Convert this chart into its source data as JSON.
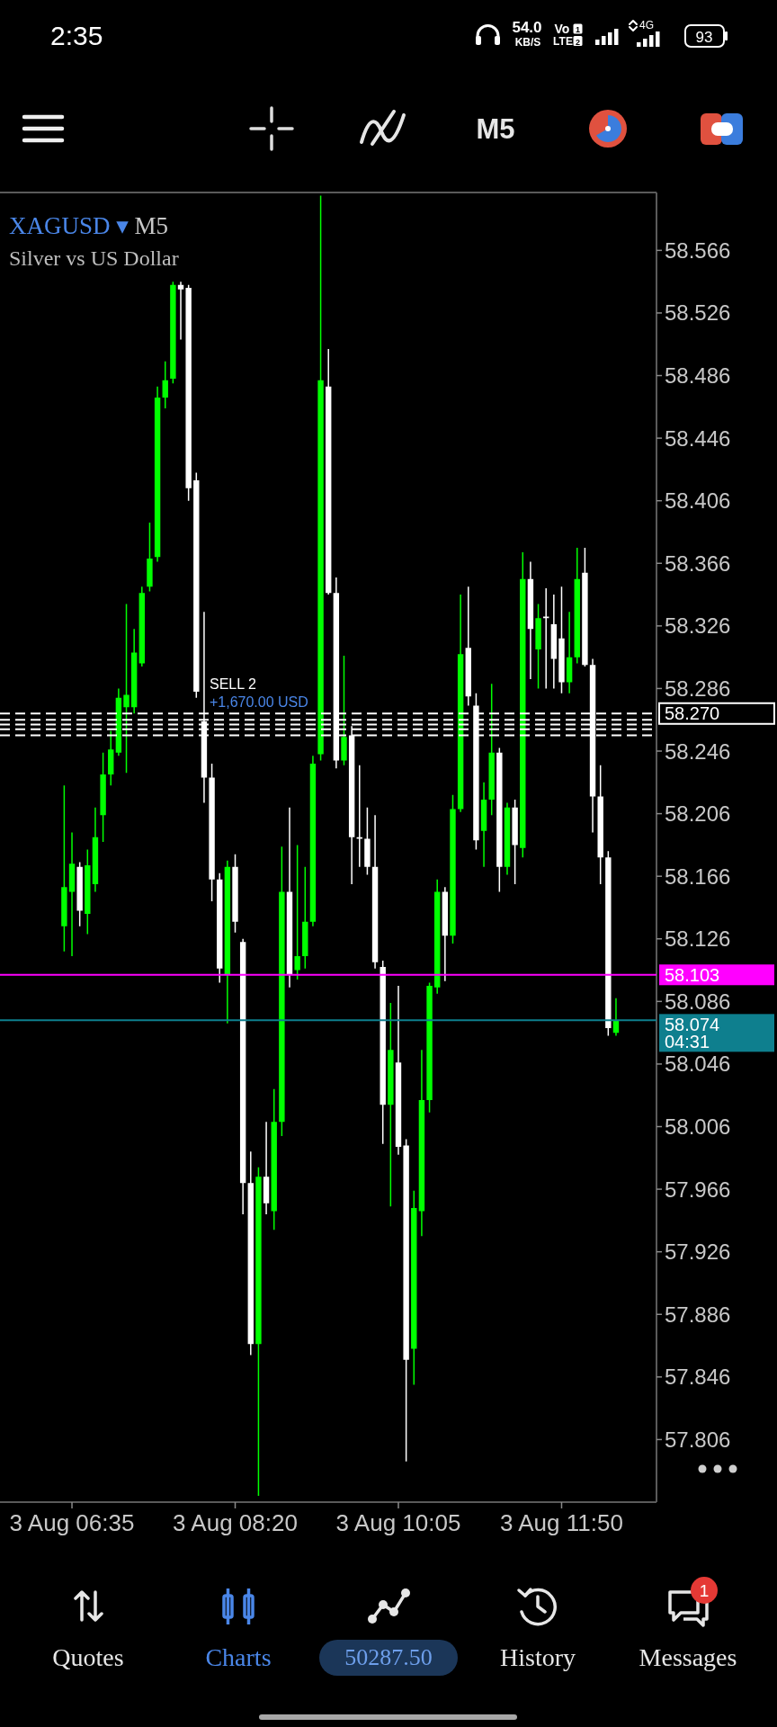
{
  "chart_data": {
    "type": "candlestick",
    "title": "XAGUSD ▾ M5",
    "subtitle": "Silver vs US Dollar",
    "categories": [
      null,
      "3 Aug 06:35",
      null,
      null,
      null,
      null,
      null,
      null,
      null,
      null,
      null,
      null,
      null,
      null,
      null,
      null,
      null,
      null,
      null,
      null,
      null,
      null,
      "3 Aug 08:20",
      null,
      null,
      null,
      null,
      null,
      null,
      null,
      null,
      null,
      null,
      null,
      null,
      null,
      null,
      null,
      null,
      null,
      null,
      null,
      null,
      "3 Aug 10:05",
      null,
      null,
      null,
      null,
      null,
      null,
      null,
      null,
      null,
      null,
      null,
      null,
      null,
      null,
      null,
      null,
      null,
      null,
      null,
      null,
      "3 Aug 11:50",
      null,
      null,
      null,
      null,
      null,
      null,
      null
    ],
    "ohlc": [
      [
        58.134,
        58.224,
        58.118,
        58.159
      ],
      [
        58.156,
        58.194,
        58.115,
        58.174
      ],
      [
        58.172,
        58.175,
        58.134,
        58.144
      ],
      [
        58.142,
        58.183,
        58.129,
        58.173
      ],
      [
        58.161,
        58.21,
        58.156,
        58.191
      ],
      [
        58.205,
        58.245,
        58.188,
        58.231
      ],
      [
        58.231,
        58.259,
        58.224,
        58.247
      ],
      [
        58.245,
        58.286,
        58.243,
        58.28
      ],
      [
        58.274,
        58.34,
        58.232,
        58.282
      ],
      [
        58.274,
        58.324,
        58.27,
        58.309
      ],
      [
        58.302,
        58.351,
        58.3,
        58.347
      ],
      [
        58.351,
        58.392,
        58.348,
        58.369
      ],
      [
        58.37,
        58.479,
        58.367,
        58.472
      ],
      [
        58.472,
        58.495,
        58.465,
        58.483
      ],
      [
        58.484,
        58.546,
        58.481,
        58.544
      ],
      [
        58.544,
        58.546,
        58.509,
        58.541
      ],
      [
        58.542,
        58.544,
        58.406,
        58.414
      ],
      [
        58.419,
        58.424,
        58.28,
        58.284
      ],
      [
        58.265,
        58.335,
        58.213,
        58.229
      ],
      [
        58.229,
        58.238,
        58.15,
        58.164
      ],
      [
        58.164,
        58.168,
        58.098,
        58.107
      ],
      [
        58.103,
        58.176,
        58.072,
        58.172
      ],
      [
        58.172,
        58.18,
        58.13,
        58.137
      ],
      [
        58.124,
        58.126,
        57.95,
        57.97
      ],
      [
        57.97,
        57.99,
        57.86,
        57.867
      ],
      [
        57.867,
        57.98,
        57.77,
        57.974
      ],
      [
        57.974,
        58.009,
        57.95,
        57.957
      ],
      [
        57.952,
        58.03,
        57.94,
        58.009
      ],
      [
        58.009,
        58.185,
        58.0,
        58.156
      ],
      [
        58.156,
        58.21,
        58.095,
        58.103
      ],
      [
        58.106,
        58.186,
        58.1,
        58.115
      ],
      [
        58.115,
        58.172,
        58.107,
        58.137
      ],
      [
        58.137,
        58.243,
        58.134,
        58.238
      ],
      [
        58.244,
        58.601,
        58.24,
        58.483
      ],
      [
        58.479,
        58.503,
        58.346,
        58.347
      ],
      [
        58.347,
        58.357,
        58.235,
        58.24
      ],
      [
        58.24,
        58.307,
        58.237,
        58.255
      ],
      [
        58.256,
        58.262,
        58.161,
        58.191
      ],
      [
        58.191,
        58.237,
        58.172,
        58.19
      ],
      [
        58.19,
        58.21,
        58.167,
        58.172
      ],
      [
        58.172,
        58.205,
        58.107,
        58.111
      ],
      [
        58.108,
        58.112,
        57.995,
        58.02
      ],
      [
        58.02,
        58.085,
        57.955,
        58.055
      ],
      [
        58.047,
        58.096,
        57.988,
        57.993
      ],
      [
        57.994,
        57.998,
        57.792,
        57.857
      ],
      [
        57.864,
        57.965,
        57.841,
        57.954
      ],
      [
        57.952,
        58.055,
        57.936,
        58.023
      ],
      [
        58.023,
        58.098,
        58.015,
        58.096
      ],
      [
        58.095,
        58.164,
        58.091,
        58.156
      ],
      [
        58.156,
        58.159,
        58.099,
        58.128
      ],
      [
        58.128,
        58.218,
        58.123,
        58.209
      ],
      [
        58.209,
        58.346,
        58.207,
        58.308
      ],
      [
        58.312,
        58.351,
        58.275,
        58.281
      ],
      [
        58.275,
        58.283,
        58.183,
        58.189
      ],
      [
        58.195,
        58.226,
        58.172,
        58.215
      ],
      [
        58.215,
        58.289,
        58.205,
        58.245
      ],
      [
        58.245,
        58.248,
        58.156,
        58.172
      ],
      [
        58.172,
        58.213,
        58.167,
        58.21
      ],
      [
        58.21,
        58.215,
        58.161,
        58.186
      ],
      [
        58.184,
        58.373,
        58.178,
        58.356
      ],
      [
        58.356,
        58.367,
        58.292,
        58.324
      ],
      [
        58.311,
        58.34,
        58.286,
        58.331
      ],
      [
        58.332,
        58.35,
        58.286,
        58.331
      ],
      [
        58.327,
        58.346,
        58.286,
        58.305
      ],
      [
        58.318,
        58.351,
        58.283,
        58.29
      ],
      [
        58.29,
        58.335,
        58.283,
        58.306
      ],
      [
        58.306,
        58.376,
        58.302,
        58.356
      ],
      [
        58.36,
        58.376,
        58.3,
        58.301
      ],
      [
        58.301,
        58.305,
        58.194,
        58.217
      ],
      [
        58.217,
        58.237,
        58.161,
        58.178
      ],
      [
        58.178,
        58.182,
        58.064,
        58.069
      ],
      [
        58.066,
        58.088,
        58.064,
        58.074
      ]
    ],
    "colors": [
      "#00ff00",
      "#00ff00",
      "#ffffff",
      "#00ff00",
      "#00ff00",
      "#00ff00",
      "#00ff00",
      "#00ff00",
      "#00ff00",
      "#00ff00",
      "#00ff00",
      "#00ff00",
      "#00ff00",
      "#00ff00",
      "#00ff00",
      "#ffffff",
      "#ffffff",
      "#ffffff",
      "#ffffff",
      "#ffffff",
      "#ffffff",
      "#00ff00",
      "#ffffff",
      "#ffffff",
      "#ffffff",
      "#00ff00",
      "#ffffff",
      "#00ff00",
      "#00ff00",
      "#ffffff",
      "#00ff00",
      "#00ff00",
      "#00ff00",
      "#00ff00",
      "#ffffff",
      "#ffffff",
      "#00ff00",
      "#ffffff",
      "#ffffff",
      "#ffffff",
      "#ffffff",
      "#ffffff",
      "#00ff00",
      "#ffffff",
      "#ffffff",
      "#00ff00",
      "#00ff00",
      "#00ff00",
      "#00ff00",
      "#ffffff",
      "#00ff00",
      "#00ff00",
      "#ffffff",
      "#ffffff",
      "#00ff00",
      "#00ff00",
      "#ffffff",
      "#00ff00",
      "#ffffff",
      "#00ff00",
      "#ffffff",
      "#00ff00",
      "#ffffff",
      "#ffffff",
      "#ffffff",
      "#00ff00",
      "#00ff00",
      "#ffffff",
      "#ffffff",
      "#ffffff",
      "#ffffff",
      "#00ff00"
    ],
    "ylim": [
      57.766,
      58.603
    ],
    "yticks": [
      58.566,
      58.526,
      58.486,
      58.446,
      58.406,
      58.366,
      58.326,
      58.286,
      58.246,
      58.206,
      58.166,
      58.126,
      58.086,
      58.046,
      58.006,
      57.966,
      57.926,
      57.886,
      57.846,
      57.806
    ],
    "ref_lines": [
      {
        "axis": "y",
        "value": 58.27,
        "label": "58.270",
        "color": "#ffffff",
        "line_style": "dashed"
      },
      {
        "axis": "y",
        "value": 58.266,
        "color": "#ffffff",
        "line_style": "dashed"
      },
      {
        "axis": "y",
        "value": 58.263,
        "color": "#ffffff",
        "line_style": "dashed"
      },
      {
        "axis": "y",
        "value": 58.26,
        "color": "#ffffff",
        "line_style": "dashed"
      },
      {
        "axis": "y",
        "value": 58.256,
        "color": "#ffffff",
        "line_style": "dashed"
      },
      {
        "axis": "y",
        "value": 58.103,
        "label": "58.103",
        "color": "#ff00ff"
      },
      {
        "axis": "y",
        "value": 58.074,
        "label": "58.074",
        "color": "#0e7f8e"
      }
    ],
    "annotations": [
      {
        "text": "SELL 2",
        "y": 58.27
      },
      {
        "text": "+1,670.00 USD",
        "y": 58.27
      },
      "04:31",
      "2:35",
      "54.0",
      "KB/S",
      "Vo",
      "LTE",
      "4G",
      "93",
      "M5",
      "Quotes",
      "Charts",
      "50287.50",
      "History",
      "Messages",
      "1",
      "1",
      "2"
    ]
  }
}
